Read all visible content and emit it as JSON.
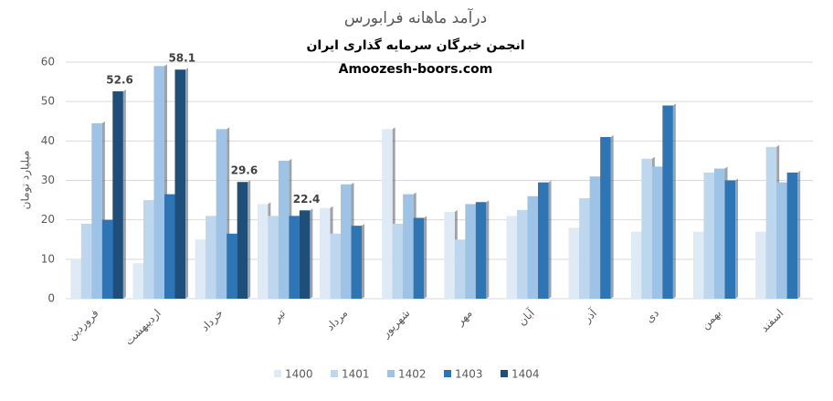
{
  "chart_data": {
    "type": "bar",
    "title": "درآمد ماهانه فرابورس",
    "annotations": [
      "انجمن خبرگان سرمایه گذاری ایران",
      "Amoozesh-boors.com"
    ],
    "y_label": "میلیارد تومان",
    "categories": [
      "فروردین",
      "اردیبهشت",
      "خرداد",
      "تیر",
      "مرداد",
      "شهریور",
      "مهر",
      "آبان",
      "آذر",
      "دی",
      "بهمن",
      "اسفند"
    ],
    "series": [
      {
        "name": "1400",
        "color": "#deebf7",
        "values": [
          10,
          9,
          15,
          24,
          23,
          43,
          22,
          21,
          18,
          17,
          17,
          17
        ]
      },
      {
        "name": "1401",
        "color": "#bdd7ee",
        "values": [
          19,
          25,
          21,
          21,
          16.5,
          19,
          15,
          22.5,
          25.5,
          35.5,
          32,
          38.5
        ]
      },
      {
        "name": "1402",
        "color": "#9dc3e6",
        "values": [
          44.5,
          59,
          43,
          35,
          29,
          26.5,
          24,
          26,
          31,
          33.5,
          33,
          29.5
        ]
      },
      {
        "name": "1403",
        "color": "#2e75b6",
        "values": [
          20,
          26.5,
          16.5,
          21,
          18.5,
          20.5,
          24.5,
          29.5,
          41,
          49,
          30,
          32
        ]
      },
      {
        "name": "1404",
        "color": "#1f4e79",
        "show_labels": true,
        "values": [
          52.6,
          58.1,
          29.6,
          22.4,
          null,
          null,
          null,
          null,
          null,
          null,
          null,
          null
        ]
      }
    ],
    "ylim": [
      0,
      60
    ],
    "yticks": [
      0,
      10,
      20,
      30,
      40,
      50,
      60
    ],
    "grid": true,
    "legend": "bottom"
  }
}
